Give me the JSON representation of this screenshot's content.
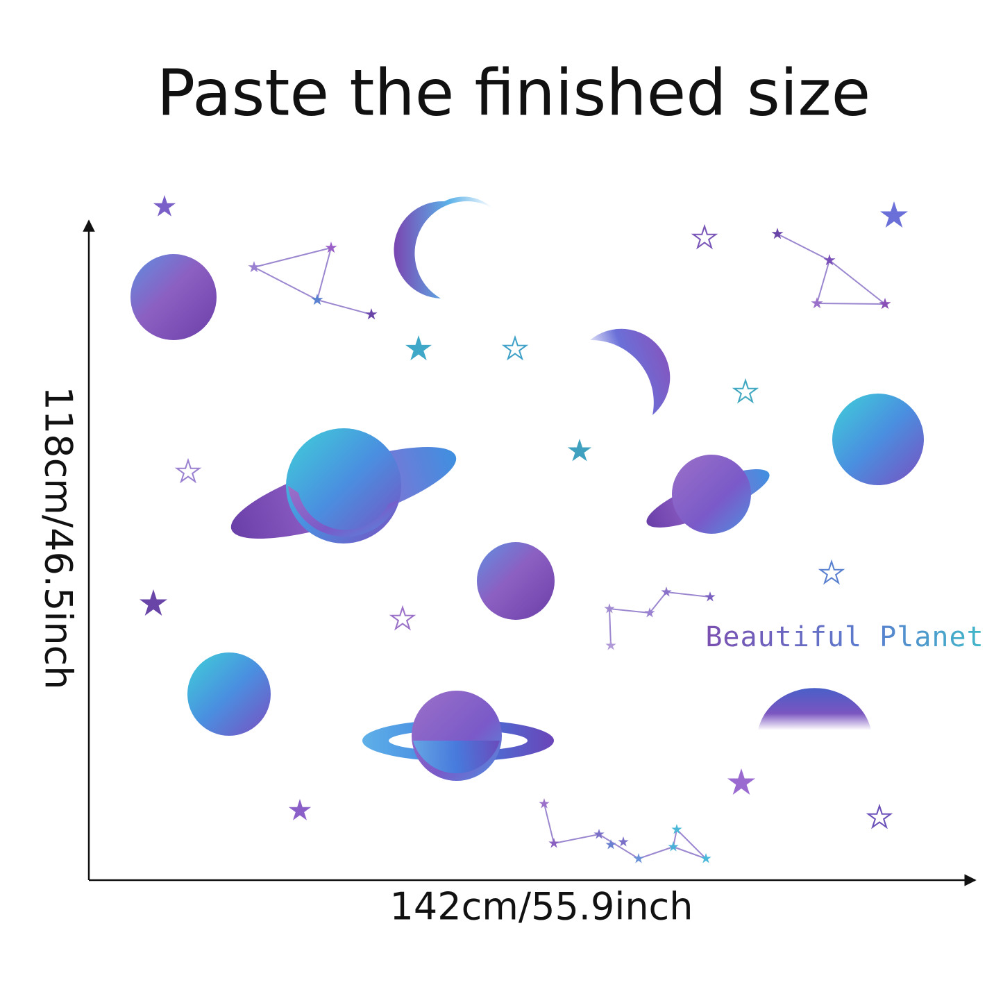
{
  "header": {
    "title": "Paste the finished size"
  },
  "dimensions": {
    "height_label": "118cm/46.5inch",
    "width_label": "142cm/55.9inch"
  },
  "decal": {
    "text": "Beautiful Planet"
  }
}
